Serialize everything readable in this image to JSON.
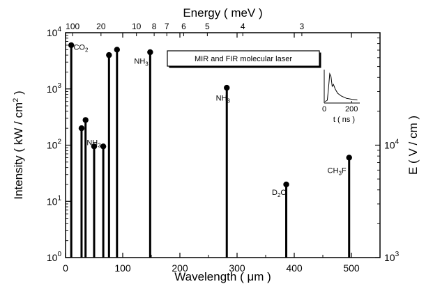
{
  "chart_data": {
    "type": "bar",
    "top_axis": {
      "title": "Energy ( meV )",
      "ticks": [
        {
          "label": "100",
          "wavelength": 12.4
        },
        {
          "label": "20",
          "wavelength": 62
        },
        {
          "label": "10",
          "wavelength": 124
        },
        {
          "label": "8",
          "wavelength": 155
        },
        {
          "label": "7",
          "wavelength": 177.1
        },
        {
          "label": "6",
          "wavelength": 206.6
        },
        {
          "label": "5",
          "wavelength": 248
        },
        {
          "label": "4",
          "wavelength": 310
        },
        {
          "label": "3",
          "wavelength": 413.3
        }
      ]
    },
    "x_axis": {
      "title": "Wavelength ( μm )",
      "range": [
        0,
        550
      ],
      "ticks": [
        {
          "label": "0",
          "value": 0
        },
        {
          "label": "100",
          "value": 100
        },
        {
          "label": "200",
          "value": 200
        },
        {
          "label": "300",
          "value": 300
        },
        {
          "label": "400",
          "value": 400
        },
        {
          "label": "500",
          "value": 500
        }
      ]
    },
    "y_axis": {
      "title": "Intensity ( kW / cm",
      "title_sup": "2",
      "title_end": " )",
      "scale": "log",
      "range": [
        1,
        10000
      ],
      "ticks": [
        {
          "base": "10",
          "exp": "0",
          "value": 1
        },
        {
          "base": "10",
          "exp": "1",
          "value": 10
        },
        {
          "base": "10",
          "exp": "2",
          "value": 100
        },
        {
          "base": "10",
          "exp": "3",
          "value": 1000
        },
        {
          "base": "10",
          "exp": "4",
          "value": 10000
        }
      ]
    },
    "y2_axis": {
      "title": "E ( V / cm )",
      "scale": "log",
      "ticks": [
        {
          "base": "10",
          "exp": "3",
          "intensity": 1
        },
        {
          "base": "10",
          "exp": "4",
          "intensity": 100
        }
      ]
    },
    "lines": [
      {
        "x": 10,
        "y": 6000
      },
      {
        "x": 28,
        "y": 200
      },
      {
        "x": 35,
        "y": 280
      },
      {
        "x": 50,
        "y": 95
      },
      {
        "x": 66,
        "y": 95
      },
      {
        "x": 76,
        "y": 4000
      },
      {
        "x": 90,
        "y": 5000
      },
      {
        "x": 148,
        "y": 4500
      },
      {
        "x": 282,
        "y": 1050
      },
      {
        "x": 386,
        "y": 20
      },
      {
        "x": 496,
        "y": 60
      }
    ],
    "annotations": [
      {
        "base": "CO",
        "sub": "2",
        "rest": "",
        "x": 14,
        "y": 5000
      },
      {
        "base": "NH",
        "sub": "3",
        "rest": "",
        "x": 37,
        "y": 100
      },
      {
        "base": "NH",
        "sub": "3",
        "rest": "",
        "x": 120,
        "y": 2800
      },
      {
        "base": "NH",
        "sub": "3",
        "rest": "",
        "x": 263,
        "y": 620
      },
      {
        "base": "D",
        "sub": "2",
        "rest": "O",
        "x": 361,
        "y": 13
      },
      {
        "base": "CH",
        "sub": "3",
        "rest": "F",
        "x": 458,
        "y": 32
      }
    ],
    "legend_box": {
      "text": "MIR and FIR molecular laser",
      "position": "top-center"
    },
    "inset": {
      "xlabel": "t ( ns )",
      "ticks": [
        {
          "label": "0",
          "value": 0
        },
        {
          "label": "200",
          "value": 200
        }
      ]
    }
  }
}
